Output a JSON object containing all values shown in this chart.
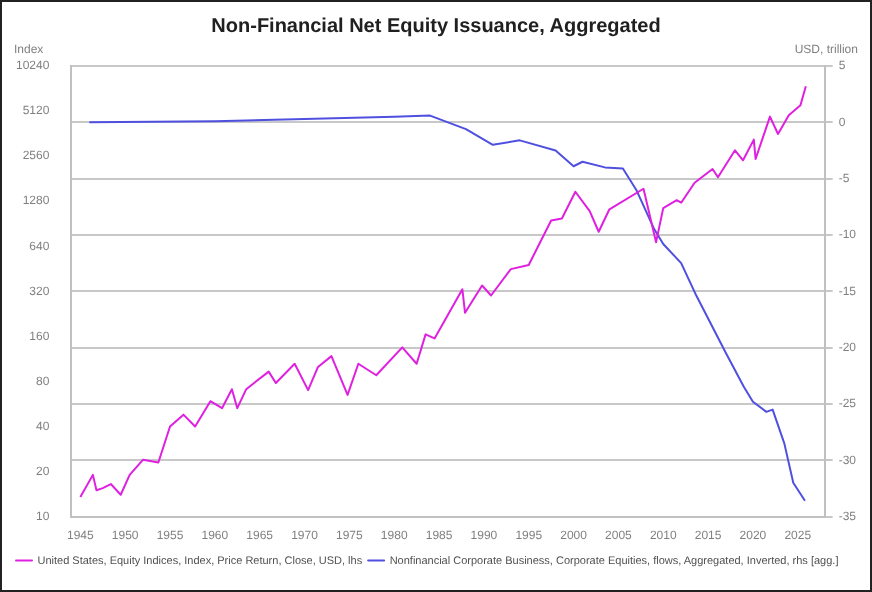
{
  "chart_data": {
    "type": "line",
    "title": "Non-Financial Net Equity Issuance, Aggregated",
    "ylabel": "Index",
    "y2label": "USD, trillion",
    "log": "y",
    "grid": "y",
    "legend": "bottom",
    "marker": "none",
    "line_style": "solid",
    "xlim": [
      1944,
      2028
    ],
    "xticks": [
      1945,
      1950,
      1955,
      1960,
      1965,
      1970,
      1975,
      1980,
      1985,
      1990,
      1995,
      2000,
      2005,
      2010,
      2015,
      2020,
      2025
    ],
    "ylim": [
      10,
      10240
    ],
    "yticks": [
      10,
      20,
      40,
      80,
      160,
      320,
      640,
      1280,
      2560,
      5120,
      10240
    ],
    "y2lim": [
      -35,
      5
    ],
    "y2ticks": [
      -35,
      -30,
      -25,
      -20,
      -15,
      -10,
      -5,
      0,
      5
    ],
    "series": [
      {
        "name": "United States, Equity Indices, Index, Price Return, Close, USD, lhs",
        "color": "#e020e0",
        "x": [
          1945.0,
          1946.4,
          1946.8,
          1947.5,
          1948.4,
          1949.5,
          1950.5,
          1952,
          1953.7,
          1955,
          1956.5,
          1957.8,
          1959.5,
          1960.8,
          1961.9,
          1962.5,
          1963.5,
          1966,
          1966.8,
          1968.9,
          1970.4,
          1971.5,
          1973,
          1974.8,
          1976,
          1978,
          1980.9,
          1982.5,
          1983.5,
          1984.5,
          1987.6,
          1987.9,
          1989.8,
          1990.8,
          1993,
          1995,
          1997.5,
          1998.7,
          2000.2,
          2001.8,
          2002.8,
          2004,
          2007.8,
          2009.2,
          2010,
          2011.5,
          2012,
          2013.5,
          2015.5,
          2016.1,
          2018,
          2018.9,
          2020.1,
          2020.3,
          2021.9,
          2022.8,
          2024,
          2025.3,
          2025.9
        ],
        "values": [
          13.5,
          19,
          15,
          15.5,
          16.5,
          14,
          19,
          24,
          23,
          40,
          48,
          40,
          59,
          53,
          71,
          53,
          71,
          93,
          78,
          105,
          70,
          100,
          118,
          65,
          105,
          88,
          135,
          105,
          165,
          155,
          330,
          230,
          350,
          300,
          450,
          480,
          950,
          980,
          1480,
          1100,
          800,
          1130,
          1550,
          680,
          1150,
          1300,
          1250,
          1700,
          2100,
          1850,
          2800,
          2400,
          3300,
          2450,
          4700,
          3600,
          4800,
          5600,
          7500
        ]
      },
      {
        "name": "Nonfinancial Corporate Business, Corporate Equities, flows, Aggregated, Inverted, rhs [agg.]",
        "color": "#5050e0",
        "axis": "y2",
        "x": [
          1946,
          1960,
          1970,
          1980,
          1984,
          1988,
          1991,
          1994,
          1998,
          2000,
          2001,
          2003.5,
          2005.5,
          2007,
          2009,
          2010,
          2012,
          2013.7,
          2017,
          2019,
          2020,
          2021.5,
          2022.2,
          2023.5,
          2024.5,
          2025.8
        ],
        "values": [
          0,
          0.1,
          0.3,
          0.5,
          0.6,
          -0.6,
          -2,
          -1.6,
          -2.5,
          -3.9,
          -3.5,
          -4,
          -4.1,
          -6,
          -9.5,
          -10.8,
          -12.5,
          -15.4,
          -20.5,
          -23.5,
          -24.8,
          -25.7,
          -25.5,
          -28.5,
          -32,
          -33.6
        ]
      }
    ]
  }
}
